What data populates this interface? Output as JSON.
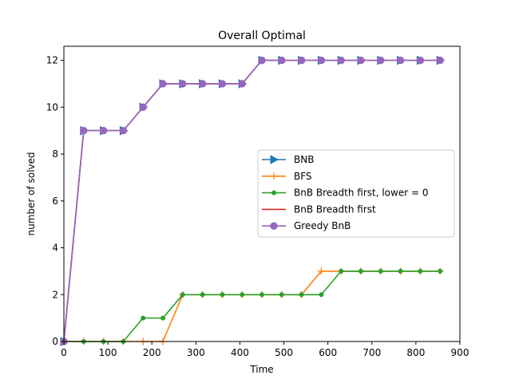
{
  "chart_data": {
    "type": "line",
    "title": "Overall Optimal",
    "xlabel": "Time",
    "ylabel": "number of solved",
    "xlim": [
      0,
      900
    ],
    "ylim": [
      0,
      12.6
    ],
    "xticks": [
      0,
      100,
      200,
      300,
      400,
      500,
      600,
      700,
      800,
      900
    ],
    "yticks": [
      0,
      2,
      4,
      6,
      8,
      10,
      12
    ],
    "grid": false,
    "legend_position": "center-right",
    "series": [
      {
        "name": "BNB",
        "color": "#1f77b4",
        "marker": "triangle-right",
        "x": [
          0,
          45,
          90,
          135,
          180,
          225,
          270,
          315,
          360,
          405,
          450,
          495,
          540,
          585,
          630,
          675,
          720,
          765,
          810,
          855
        ],
        "y": [
          0,
          9,
          9,
          9,
          10,
          11,
          11,
          11,
          11,
          11,
          12,
          12,
          12,
          12,
          12,
          12,
          12,
          12,
          12,
          12
        ]
      },
      {
        "name": "BFS",
        "color": "#ff7f0e",
        "marker": "plus",
        "x": [
          0,
          45,
          90,
          135,
          180,
          225,
          270,
          315,
          360,
          405,
          450,
          495,
          540,
          585,
          630,
          675,
          720,
          765,
          810,
          855
        ],
        "y": [
          0,
          0,
          0,
          0,
          0,
          0,
          2,
          2,
          2,
          2,
          2,
          2,
          2,
          3,
          3,
          3,
          3,
          3,
          3,
          3
        ]
      },
      {
        "name": "BnB Breadth first, lower = 0",
        "color": "#2ca02c",
        "marker": "point",
        "x": [
          0,
          45,
          90,
          135,
          180,
          225,
          270,
          315,
          360,
          405,
          450,
          495,
          540,
          585,
          630,
          675,
          720,
          765,
          810,
          855
        ],
        "y": [
          0,
          0,
          0,
          0,
          1,
          1,
          2,
          2,
          2,
          2,
          2,
          2,
          2,
          2,
          3,
          3,
          3,
          3,
          3,
          3
        ]
      },
      {
        "name": "BnB Breadth first",
        "color": "#d62728",
        "marker": "none",
        "x": [
          0,
          45,
          90,
          135,
          180,
          225,
          270,
          315,
          360,
          405,
          450,
          495,
          540,
          585,
          630,
          675,
          720,
          765,
          810,
          855
        ],
        "y": [
          0,
          9,
          9,
          9,
          10,
          11,
          11,
          11,
          11,
          11,
          12,
          12,
          12,
          12,
          12,
          12,
          12,
          12,
          12,
          12
        ]
      },
      {
        "name": "Greedy BnB",
        "color": "#9467bd",
        "marker": "circle",
        "x": [
          0,
          45,
          90,
          135,
          180,
          225,
          270,
          315,
          360,
          405,
          450,
          495,
          540,
          585,
          630,
          675,
          720,
          765,
          810,
          855
        ],
        "y": [
          0,
          9,
          9,
          9,
          10,
          11,
          11,
          11,
          11,
          11,
          12,
          12,
          12,
          12,
          12,
          12,
          12,
          12,
          12,
          12
        ]
      }
    ]
  }
}
